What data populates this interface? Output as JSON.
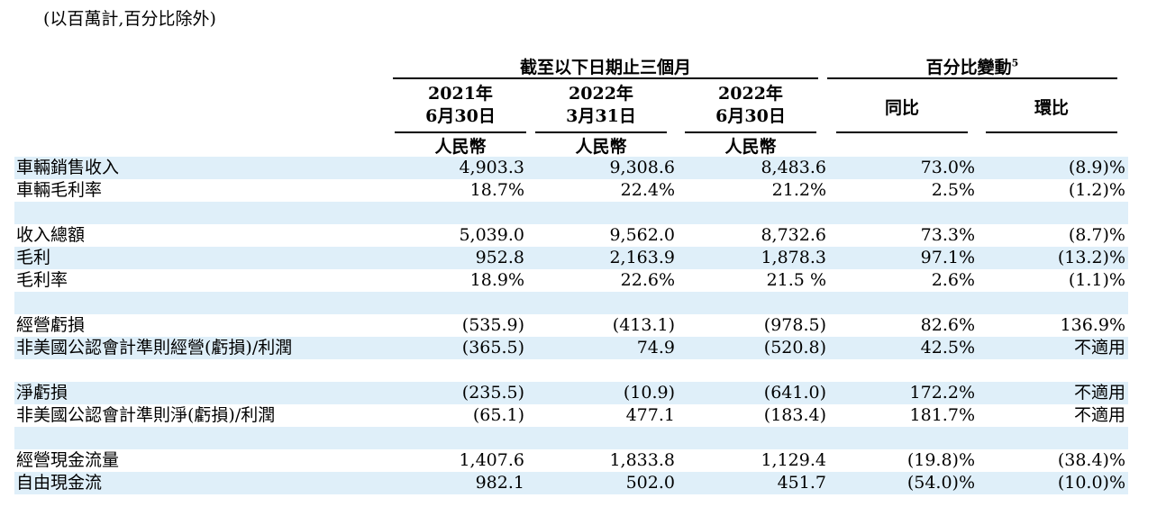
{
  "unit_note": "(以百萬計,百分比除外)",
  "header": {
    "group_period": "截至以下日期止三個月",
    "group_change": "百分比變動",
    "group_change_note": "5",
    "columns": [
      {
        "year": "2021年",
        "date": "6月30日",
        "currency": "人民幣"
      },
      {
        "year": "2022年",
        "date": "3月31日",
        "currency": "人民幣"
      },
      {
        "year": "2022年",
        "date": "6月30日",
        "currency": "人民幣"
      }
    ],
    "yoy": "同比",
    "qoq": "環比"
  },
  "rows": [
    {
      "label": "車輛銷售收入",
      "values": [
        "4,903.3",
        "9,308.6",
        "8,483.6",
        "73.0%",
        "(8.9)%"
      ]
    },
    {
      "label": "車輛毛利率",
      "values": [
        "18.7%",
        "22.4%",
        "21.2%",
        "2.5%",
        "(1.2)%"
      ]
    },
    {
      "label": "",
      "values": [
        "",
        "",
        "",
        "",
        ""
      ]
    },
    {
      "label": "收入總額",
      "values": [
        "5,039.0",
        "9,562.0",
        "8,732.6",
        "73.3%",
        "(8.7)%"
      ]
    },
    {
      "label": "毛利",
      "values": [
        "952.8",
        "2,163.9",
        "1,878.3",
        "97.1%",
        "(13.2)%"
      ]
    },
    {
      "label": "毛利率",
      "values": [
        "18.9%",
        "22.6%",
        "21.5 %",
        "2.6%",
        "(1.1)%"
      ]
    },
    {
      "label": "",
      "values": [
        "",
        "",
        "",
        "",
        ""
      ]
    },
    {
      "label": "經營虧損",
      "values": [
        "(535.9)",
        "(413.1)",
        "(978.5)",
        "82.6%",
        "136.9%"
      ]
    },
    {
      "label": "非美國公認會計準則經營(虧損)/利潤",
      "values": [
        "(365.5)",
        "74.9",
        "(520.8)",
        "42.5%",
        "不適用"
      ]
    },
    {
      "label": "",
      "values": [
        "",
        "",
        "",
        "",
        ""
      ]
    },
    {
      "label": "淨虧損",
      "values": [
        "(235.5)",
        "(10.9)",
        "(641.0)",
        "172.2%",
        "不適用"
      ]
    },
    {
      "label": "非美國公認會計準則淨(虧損)/利潤",
      "values": [
        "(65.1)",
        "477.1",
        "(183.4)",
        "181.7%",
        "不適用"
      ]
    },
    {
      "label": "",
      "values": [
        "",
        "",
        "",
        "",
        ""
      ]
    },
    {
      "label": "經營現金流量",
      "values": [
        "1,407.6",
        "1,833.8",
        "1,129.4",
        "(19.8)%",
        "(38.4)%"
      ]
    },
    {
      "label": "自由現金流",
      "values": [
        "982.1",
        "502.0",
        "451.7",
        "(54.0)%",
        "(10.0)%"
      ]
    }
  ]
}
